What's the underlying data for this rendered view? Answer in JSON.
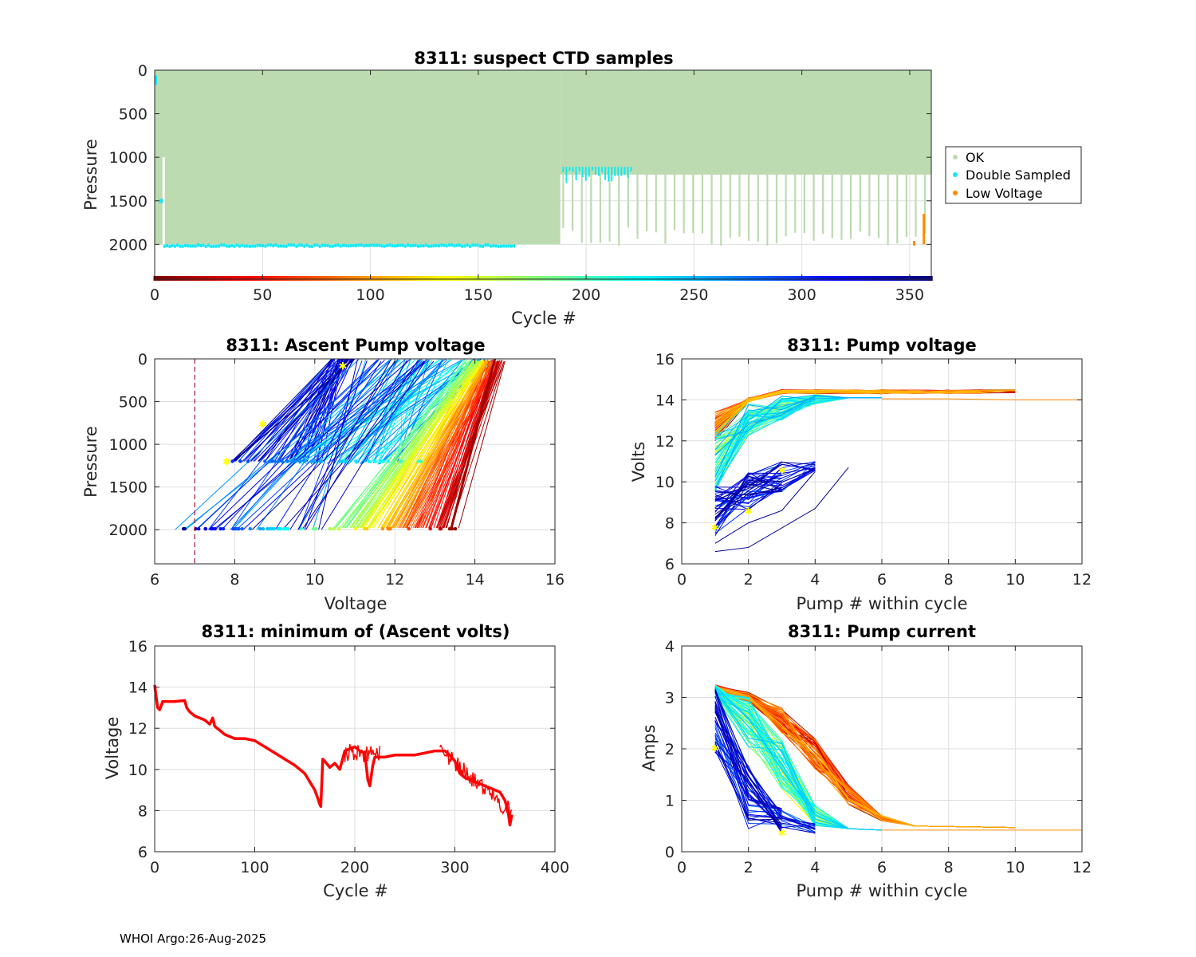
{
  "footer": "WHOI Argo:26-Aug-2025",
  "colors": {
    "ok": "#bcdbb1",
    "double_sampled": "#15e8ef",
    "low_voltage": "#ff8c00",
    "min_voltage_line": "#ff0000",
    "threshold_line": "#a2142f",
    "marker": "#ffff00"
  },
  "chart_data": [
    {
      "id": "suspect_ctd",
      "type": "scatter",
      "title": "8311: suspect CTD samples",
      "xlabel": "Cycle #",
      "ylabel": "Pressure",
      "xlim": [
        0,
        360
      ],
      "ylim": [
        2400,
        0
      ],
      "y_reversed": true,
      "xticks": [
        0,
        50,
        100,
        150,
        200,
        250,
        300,
        350
      ],
      "yticks": [
        0,
        500,
        1000,
        1500,
        2000
      ],
      "legend": {
        "placement": "outside-right",
        "entries": [
          {
            "label": "OK",
            "color": "#bcdbb1"
          },
          {
            "label": "Double Sampled",
            "color": "#15e8ef"
          },
          {
            "label": "Low Voltage",
            "color": "#ff8c00"
          }
        ]
      },
      "ok_region": {
        "cycles_dense": [
          0,
          188
        ],
        "max_pressure_dense": 2000,
        "cycles_sparse": [
          188,
          360
        ],
        "max_pressure_sparse": 1200
      },
      "double_sampled": {
        "top_band_cycles": [
          188,
          222
        ],
        "top_band_pressure": [
          1100,
          1300
        ],
        "bottom_band_cycles": [
          4,
          166
        ],
        "bottom_band_pressure": 2000
      },
      "low_voltage": {
        "cycles": [
          352,
          357
        ],
        "pressure": [
          1650,
          2000
        ]
      },
      "cycle_colorbar": "jet-reversed"
    },
    {
      "id": "ascent_pump_voltage",
      "type": "line",
      "title": "8311: Ascent Pump voltage",
      "xlabel": "Voltage",
      "ylabel": "Pressure",
      "xlim": [
        6,
        16
      ],
      "ylim": [
        2400,
        0
      ],
      "y_reversed": true,
      "xticks": [
        6,
        8,
        10,
        12,
        14,
        16
      ],
      "yticks": [
        0,
        500,
        1000,
        1500,
        2000
      ],
      "threshold_voltage": 7,
      "series_description": "one line per cycle, colored by cycle (jet colormap)"
    },
    {
      "id": "pump_voltage",
      "type": "line",
      "title": "8311: Pump voltage",
      "xlabel": "Pump # within cycle",
      "ylabel": "Volts",
      "xlim": [
        0,
        12
      ],
      "ylim": [
        6,
        16
      ],
      "xticks": [
        0,
        2,
        4,
        6,
        8,
        10,
        12
      ],
      "yticks": [
        6,
        8,
        10,
        12,
        14,
        16
      ]
    },
    {
      "id": "min_ascent_volts",
      "type": "line",
      "title": "8311: minimum of (Ascent volts)",
      "xlabel": "Cycle #",
      "ylabel": "Voltage",
      "xlim": [
        0,
        400
      ],
      "ylim": [
        6,
        16
      ],
      "xticks": [
        0,
        100,
        200,
        300,
        400
      ],
      "yticks": [
        6,
        8,
        10,
        12,
        14,
        16
      ],
      "series": [
        {
          "name": "min ascent volts",
          "color": "#ff0000",
          "x": [
            0,
            1,
            3,
            5,
            8,
            12,
            20,
            30,
            32,
            35,
            40,
            45,
            50,
            55,
            58,
            60,
            65,
            70,
            80,
            90,
            100,
            110,
            120,
            130,
            140,
            150,
            155,
            160,
            163,
            165,
            166,
            168,
            170,
            175,
            180,
            185,
            190,
            195,
            200,
            205,
            210,
            213,
            215,
            218,
            220,
            230,
            240,
            250,
            260,
            270,
            280,
            290,
            295,
            300,
            305,
            310,
            320,
            330,
            340,
            345,
            350,
            353,
            355,
            357
          ],
          "y": [
            14.1,
            13.7,
            13.0,
            12.9,
            13.3,
            13.3,
            13.3,
            13.35,
            13.0,
            12.8,
            12.6,
            12.5,
            12.4,
            12.2,
            12.5,
            12.1,
            11.9,
            11.7,
            11.5,
            11.5,
            11.4,
            11.1,
            10.8,
            10.5,
            10.2,
            9.8,
            9.4,
            9.0,
            8.6,
            8.3,
            8.2,
            10.5,
            10.4,
            10.1,
            10.3,
            10.0,
            10.9,
            11.0,
            11.1,
            10.9,
            10.8,
            9.5,
            9.2,
            10.2,
            10.6,
            10.6,
            10.7,
            10.7,
            10.7,
            10.8,
            10.9,
            10.9,
            10.7,
            10.4,
            9.8,
            9.6,
            9.4,
            9.2,
            9.0,
            8.9,
            8.5,
            8.0,
            7.3,
            7.8
          ]
        }
      ]
    },
    {
      "id": "pump_current",
      "type": "line",
      "title": "8311: Pump current",
      "xlabel": "Pump # within cycle",
      "ylabel": "Amps",
      "xlim": [
        0,
        12
      ],
      "ylim": [
        0,
        4
      ],
      "xticks": [
        0,
        2,
        4,
        6,
        8,
        10,
        12
      ],
      "yticks": [
        0,
        1,
        2,
        3,
        4
      ]
    }
  ]
}
